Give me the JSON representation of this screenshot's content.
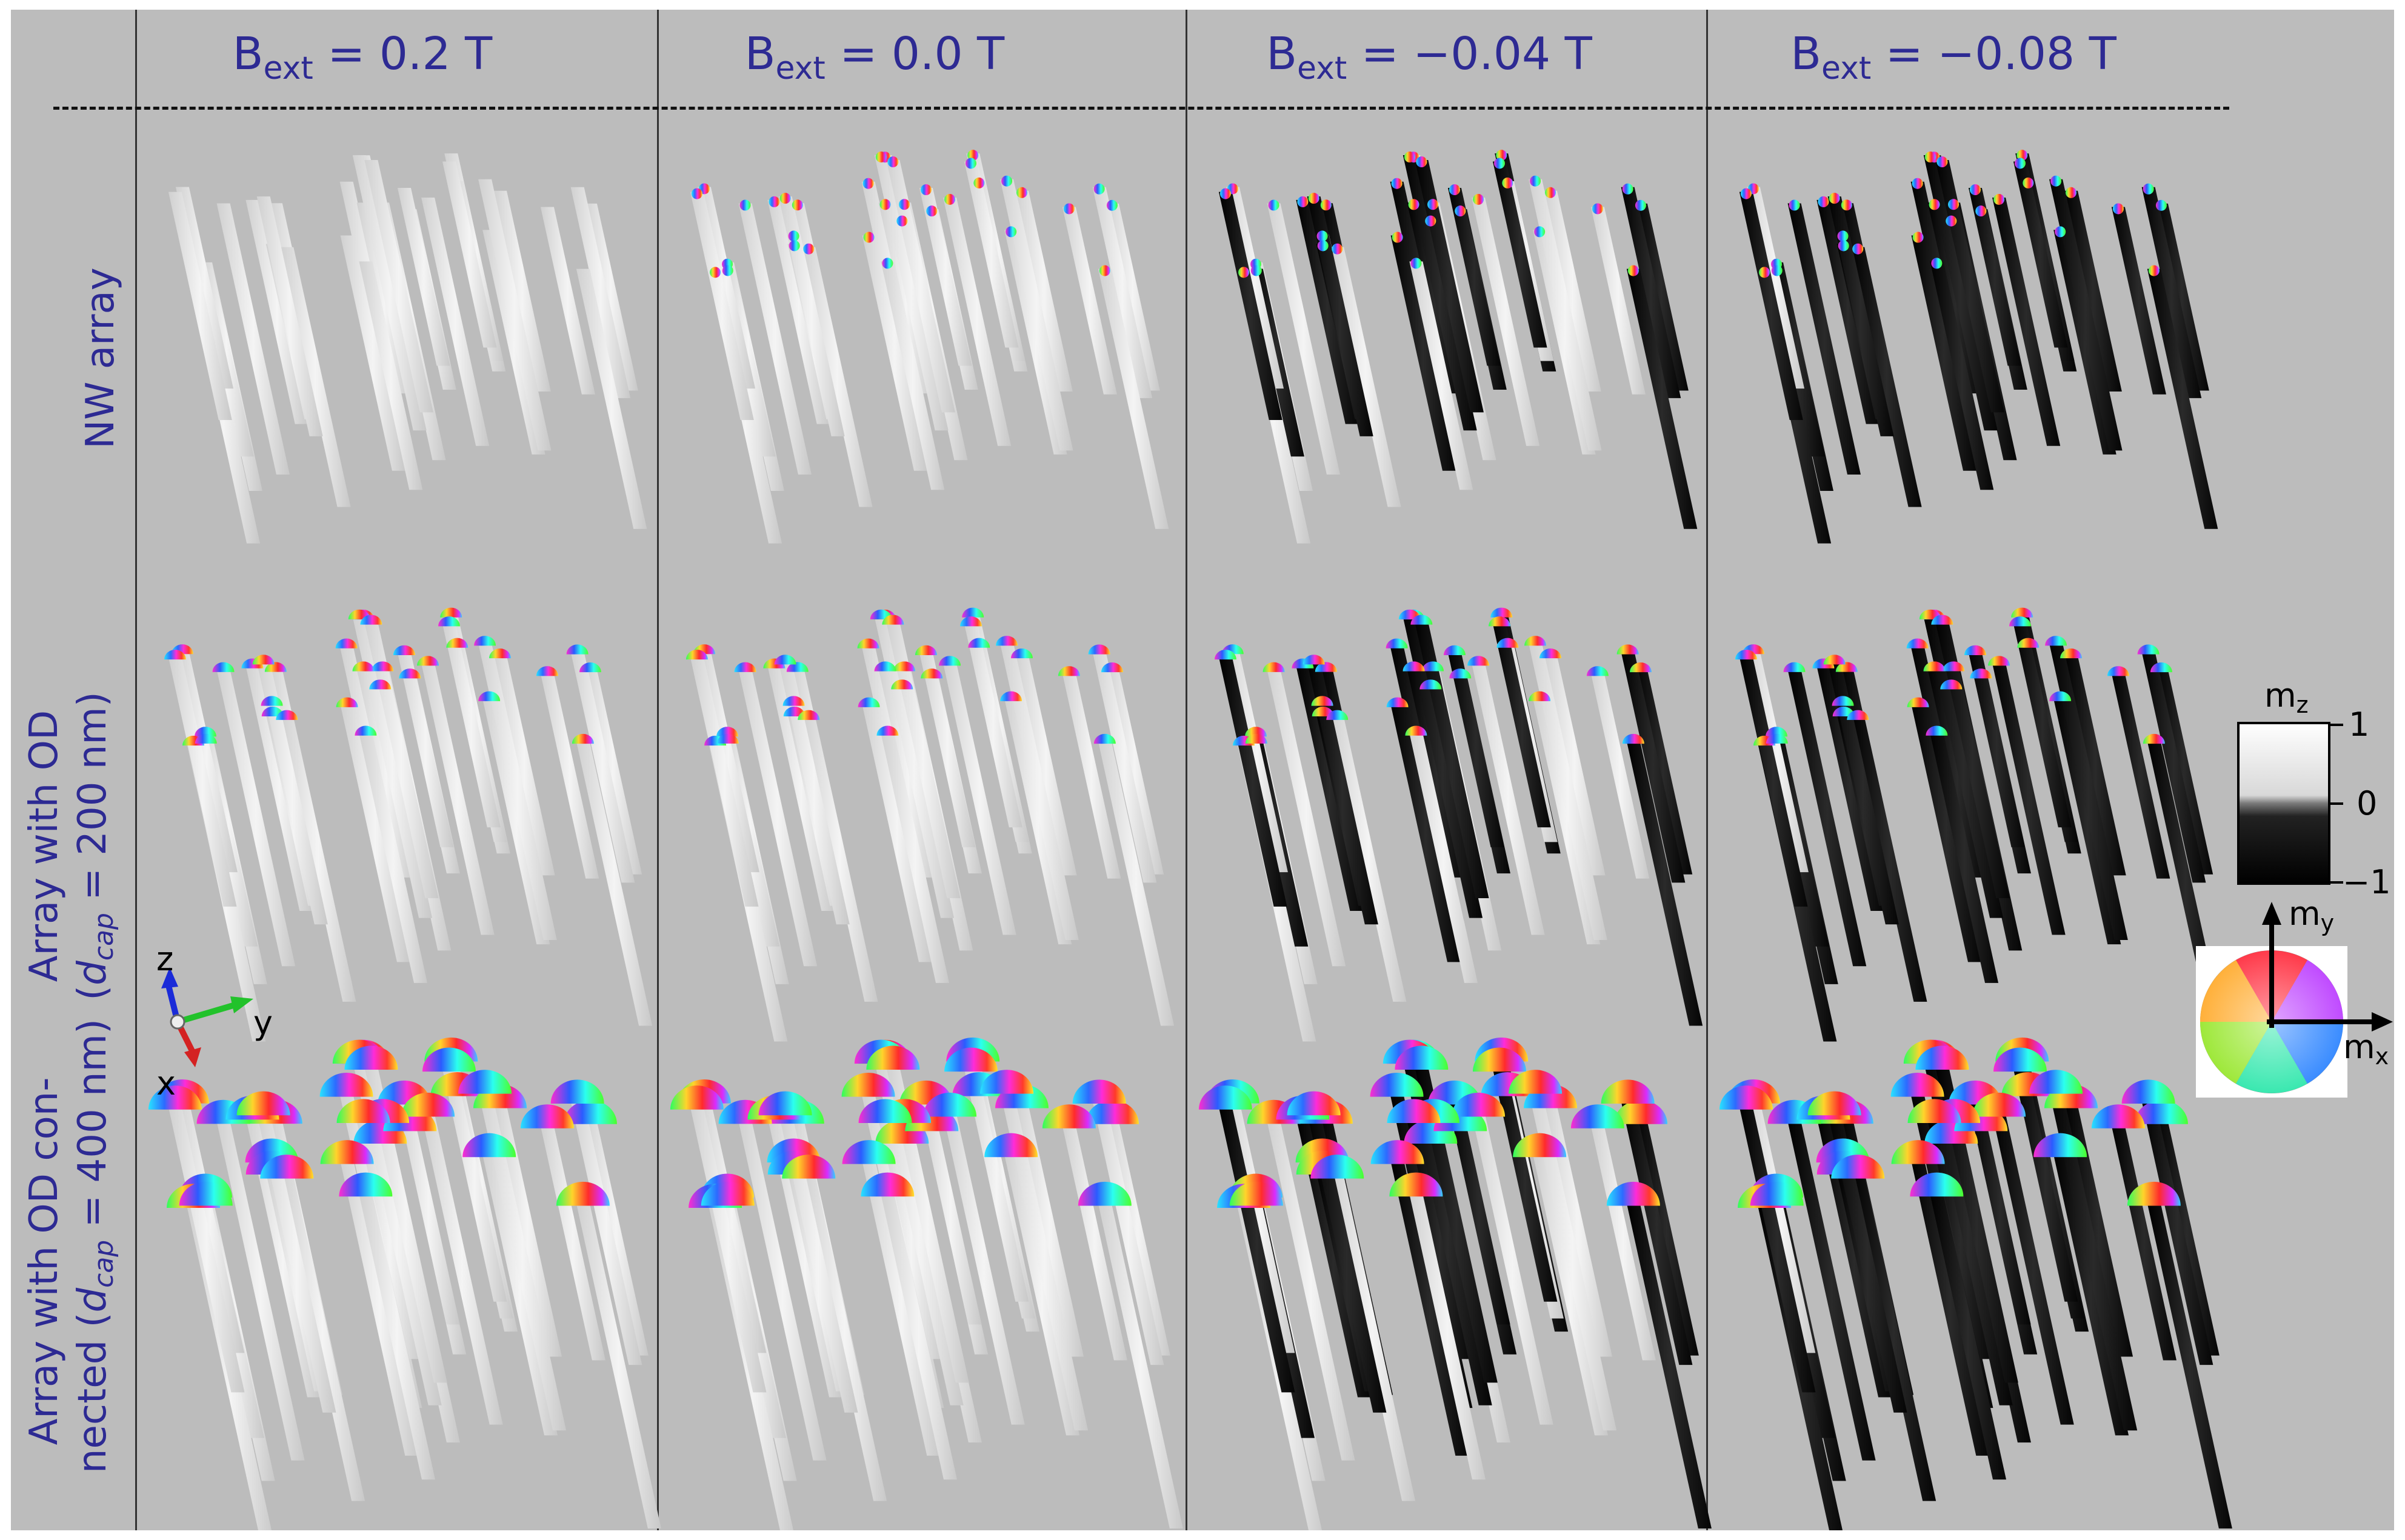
{
  "columns": [
    {
      "prefix": "B",
      "sub": "ext",
      "value": "= 0.2 T"
    },
    {
      "prefix": "B",
      "sub": "ext",
      "value": "= 0.0 T"
    },
    {
      "prefix": "B",
      "sub": "ext",
      "value": "= −0.04 T"
    },
    {
      "prefix": "B",
      "sub": "ext",
      "value": "= −0.08 T"
    }
  ],
  "rows": [
    {
      "line1": "NW array",
      "line2_pre": "",
      "line2_var": "",
      "line2_sub": "",
      "line2_post": ""
    },
    {
      "line1": "Array with OD",
      "line2_pre": "(",
      "line2_var": "d",
      "line2_sub": "cap",
      "line2_post": " = 200 nm)"
    },
    {
      "line1": "Array with OD con-",
      "line2_pre": "nected (",
      "line2_var": "d",
      "line2_sub": "cap",
      "line2_post": " = 400 nm)"
    }
  ],
  "axes": {
    "z": "z",
    "y": "y",
    "x": "x"
  },
  "colorbar": {
    "title": "m",
    "title_sub": "z",
    "ticks": [
      "1",
      "0",
      "−1"
    ]
  },
  "colorwheel": {
    "my": "m",
    "my_sub": "y",
    "mx": "m",
    "mx_sub": "x"
  },
  "colors": {
    "text": "#2d2a93",
    "background": "#bcbcbc",
    "wire_up": "#e6e6e6",
    "wire_down": "#0c0c0c"
  }
}
